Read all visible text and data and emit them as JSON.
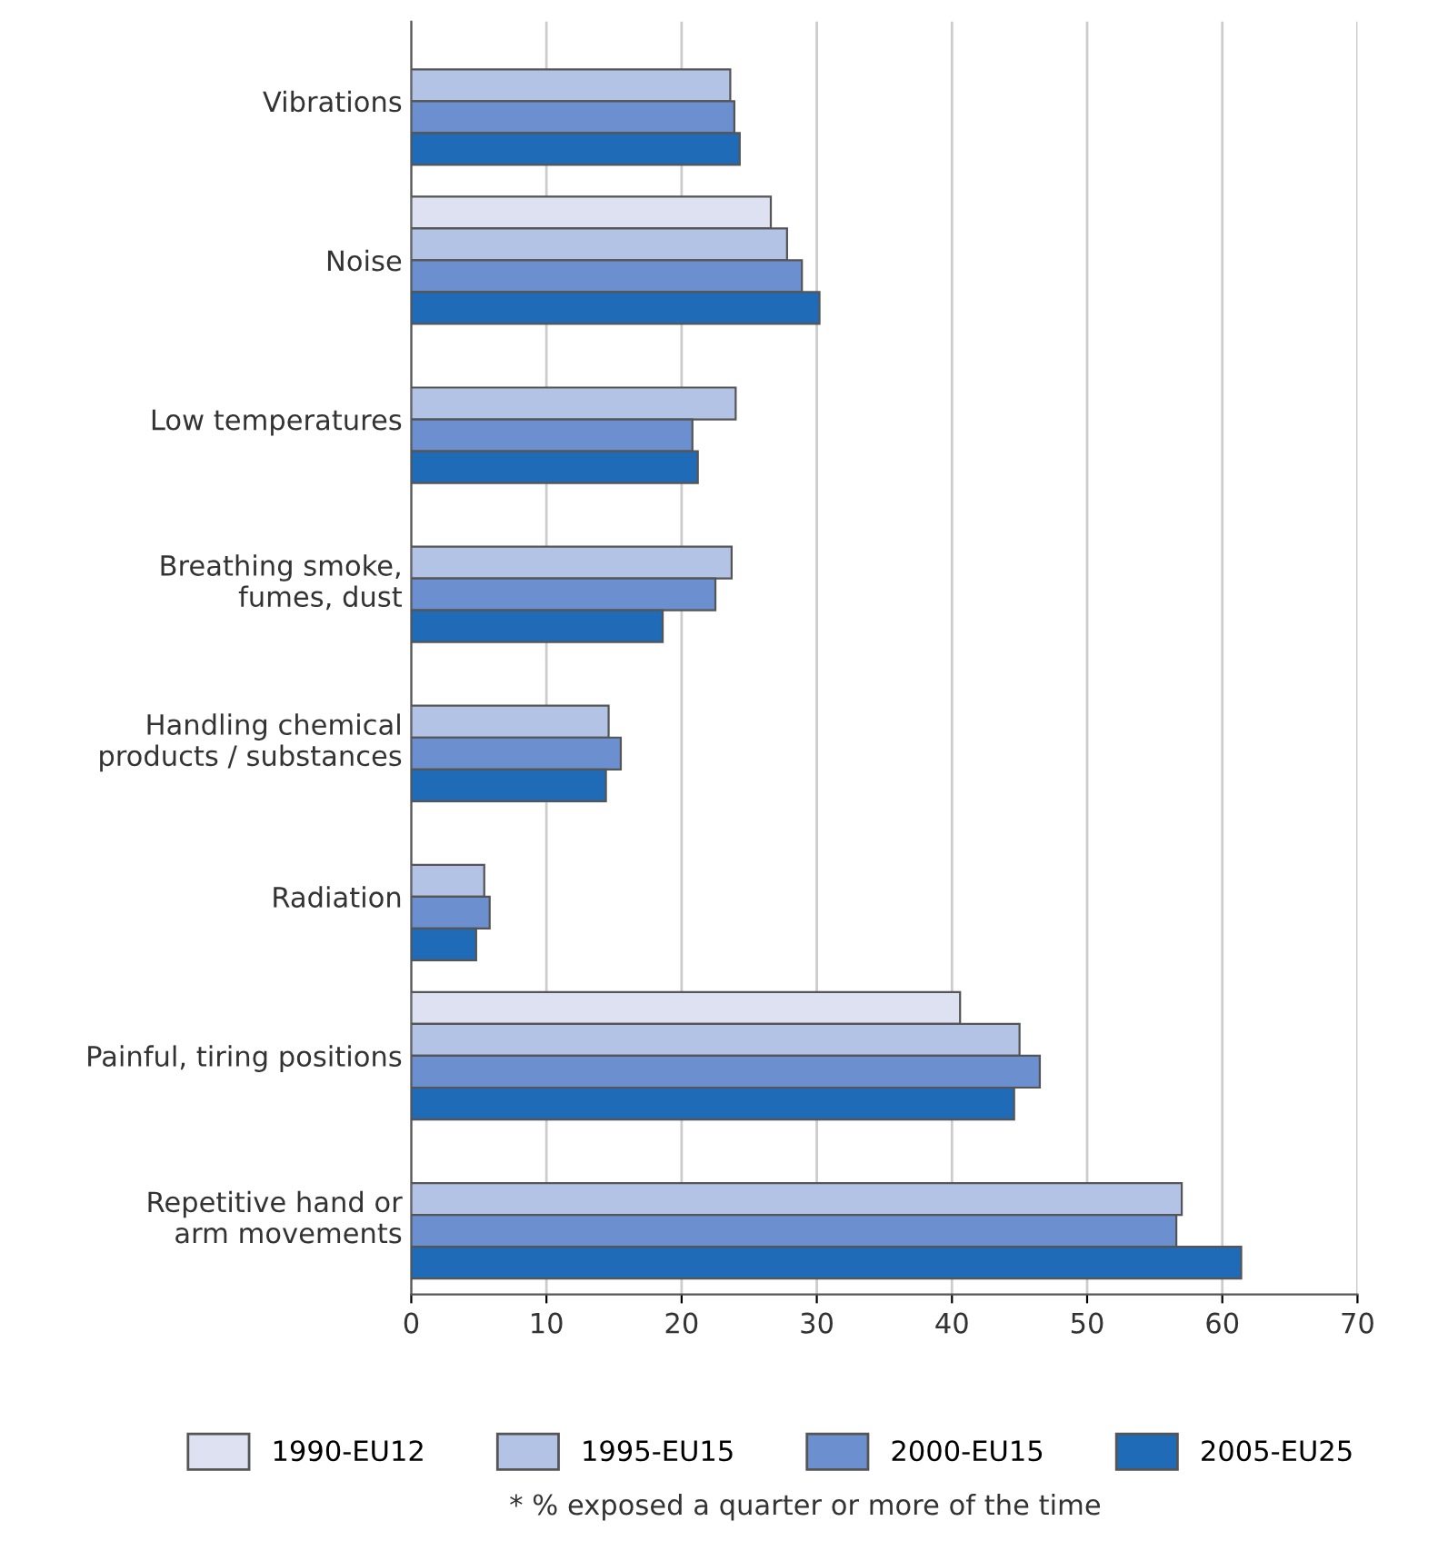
{
  "chart_data": {
    "type": "bar",
    "orientation": "horizontal",
    "categories": [
      "Vibrations",
      "Noise",
      "Low temperatures",
      "Breathing smoke,\nfumes, dust",
      "Handling chemical\nproducts / substances",
      "Radiation",
      "Painful, tiring positions",
      "Repetitive hand or\narm movements"
    ],
    "series": [
      {
        "name": "1990-EU12",
        "color": "#dde1f2",
        "values": [
          null,
          26.6,
          null,
          null,
          null,
          null,
          40.6,
          null
        ]
      },
      {
        "name": "1995-EU15",
        "color": "#b3c3e6",
        "values": [
          23.6,
          27.8,
          24.0,
          23.7,
          14.6,
          5.4,
          45.0,
          57.0
        ]
      },
      {
        "name": "2000-EU15",
        "color": "#6b8fcf",
        "values": [
          23.9,
          28.9,
          20.8,
          22.5,
          15.5,
          5.8,
          46.5,
          56.6
        ]
      },
      {
        "name": "2005-EU25",
        "color": "#1f6bb8",
        "values": [
          24.3,
          30.2,
          21.2,
          18.6,
          14.4,
          4.8,
          44.6,
          61.4
        ]
      }
    ],
    "xlim": [
      0,
      70
    ],
    "xticks": [
      0,
      10,
      20,
      30,
      40,
      50,
      60,
      70
    ],
    "grid": "x",
    "legend": "bottom",
    "annotations": [
      "* % exposed a quarter or more of the time"
    ]
  }
}
